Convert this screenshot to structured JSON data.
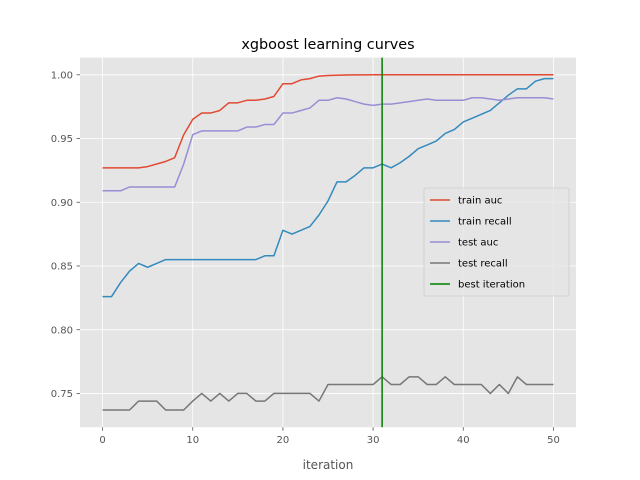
{
  "chart_data": {
    "type": "line",
    "title": "xgboost learning curves",
    "xlabel": "iteration",
    "ylabel": "",
    "xlim": [
      -2.5,
      52.5
    ],
    "ylim": [
      0.7235,
      1.0135
    ],
    "x_ticks": [
      0,
      10,
      20,
      30,
      40,
      50
    ],
    "y_ticks": [
      0.75,
      0.8,
      0.85,
      0.9,
      0.95,
      1.0
    ],
    "y_tick_labels": [
      "0.75",
      "0.80",
      "0.85",
      "0.90",
      "0.95",
      "1.00"
    ],
    "grid": true,
    "legend_position": "center-right",
    "x": [
      0,
      1,
      2,
      3,
      4,
      5,
      6,
      7,
      8,
      9,
      10,
      11,
      12,
      13,
      14,
      15,
      16,
      17,
      18,
      19,
      20,
      21,
      22,
      23,
      24,
      25,
      26,
      27,
      28,
      29,
      30,
      31,
      32,
      33,
      34,
      35,
      36,
      37,
      38,
      39,
      40,
      41,
      42,
      43,
      44,
      45,
      46,
      47,
      48,
      49,
      50
    ],
    "series": [
      {
        "name": "train auc",
        "color": "#e24a33",
        "values": [
          0.927,
          0.927,
          0.927,
          0.927,
          0.927,
          0.928,
          0.93,
          0.932,
          0.935,
          0.953,
          0.965,
          0.97,
          0.97,
          0.972,
          0.978,
          0.978,
          0.98,
          0.98,
          0.981,
          0.983,
          0.993,
          0.993,
          0.996,
          0.997,
          0.999,
          0.9995,
          0.9997,
          0.9998,
          0.9999,
          0.9999,
          1.0,
          1.0,
          1.0,
          1.0,
          1.0,
          1.0,
          1.0,
          1.0,
          1.0,
          1.0,
          1.0,
          1.0,
          1.0,
          1.0,
          1.0,
          1.0,
          1.0,
          1.0,
          1.0,
          1.0,
          1.0
        ]
      },
      {
        "name": "train recall",
        "color": "#348abd",
        "values": [
          0.826,
          0.826,
          0.837,
          0.846,
          0.852,
          0.849,
          0.852,
          0.855,
          0.855,
          0.855,
          0.855,
          0.855,
          0.855,
          0.855,
          0.855,
          0.855,
          0.855,
          0.855,
          0.858,
          0.858,
          0.878,
          0.875,
          0.878,
          0.881,
          0.89,
          0.901,
          0.916,
          0.916,
          0.921,
          0.927,
          0.927,
          0.93,
          0.927,
          0.931,
          0.936,
          0.942,
          0.945,
          0.948,
          0.954,
          0.957,
          0.963,
          0.966,
          0.969,
          0.972,
          0.978,
          0.984,
          0.989,
          0.989,
          0.995,
          0.997,
          0.997
        ]
      },
      {
        "name": "test auc",
        "color": "#988ed5",
        "values": [
          0.909,
          0.909,
          0.909,
          0.912,
          0.912,
          0.912,
          0.912,
          0.912,
          0.912,
          0.93,
          0.953,
          0.956,
          0.956,
          0.956,
          0.956,
          0.956,
          0.959,
          0.959,
          0.961,
          0.961,
          0.97,
          0.97,
          0.972,
          0.974,
          0.98,
          0.98,
          0.982,
          0.981,
          0.979,
          0.977,
          0.976,
          0.977,
          0.977,
          0.978,
          0.979,
          0.98,
          0.981,
          0.98,
          0.98,
          0.98,
          0.98,
          0.982,
          0.982,
          0.981,
          0.98,
          0.981,
          0.982,
          0.982,
          0.982,
          0.982,
          0.981
        ]
      },
      {
        "name": "test recall",
        "color": "#777777",
        "values": [
          0.737,
          0.737,
          0.737,
          0.737,
          0.744,
          0.744,
          0.744,
          0.737,
          0.737,
          0.737,
          0.744,
          0.75,
          0.744,
          0.75,
          0.744,
          0.75,
          0.75,
          0.744,
          0.744,
          0.75,
          0.75,
          0.75,
          0.75,
          0.75,
          0.744,
          0.757,
          0.757,
          0.757,
          0.757,
          0.757,
          0.757,
          0.763,
          0.757,
          0.757,
          0.763,
          0.763,
          0.757,
          0.757,
          0.763,
          0.757,
          0.757,
          0.757,
          0.757,
          0.75,
          0.757,
          0.75,
          0.763,
          0.757,
          0.757,
          0.757,
          0.757
        ]
      }
    ],
    "vlines": [
      {
        "name": "best iteration",
        "x": 31,
        "color": "#008000"
      }
    ]
  }
}
